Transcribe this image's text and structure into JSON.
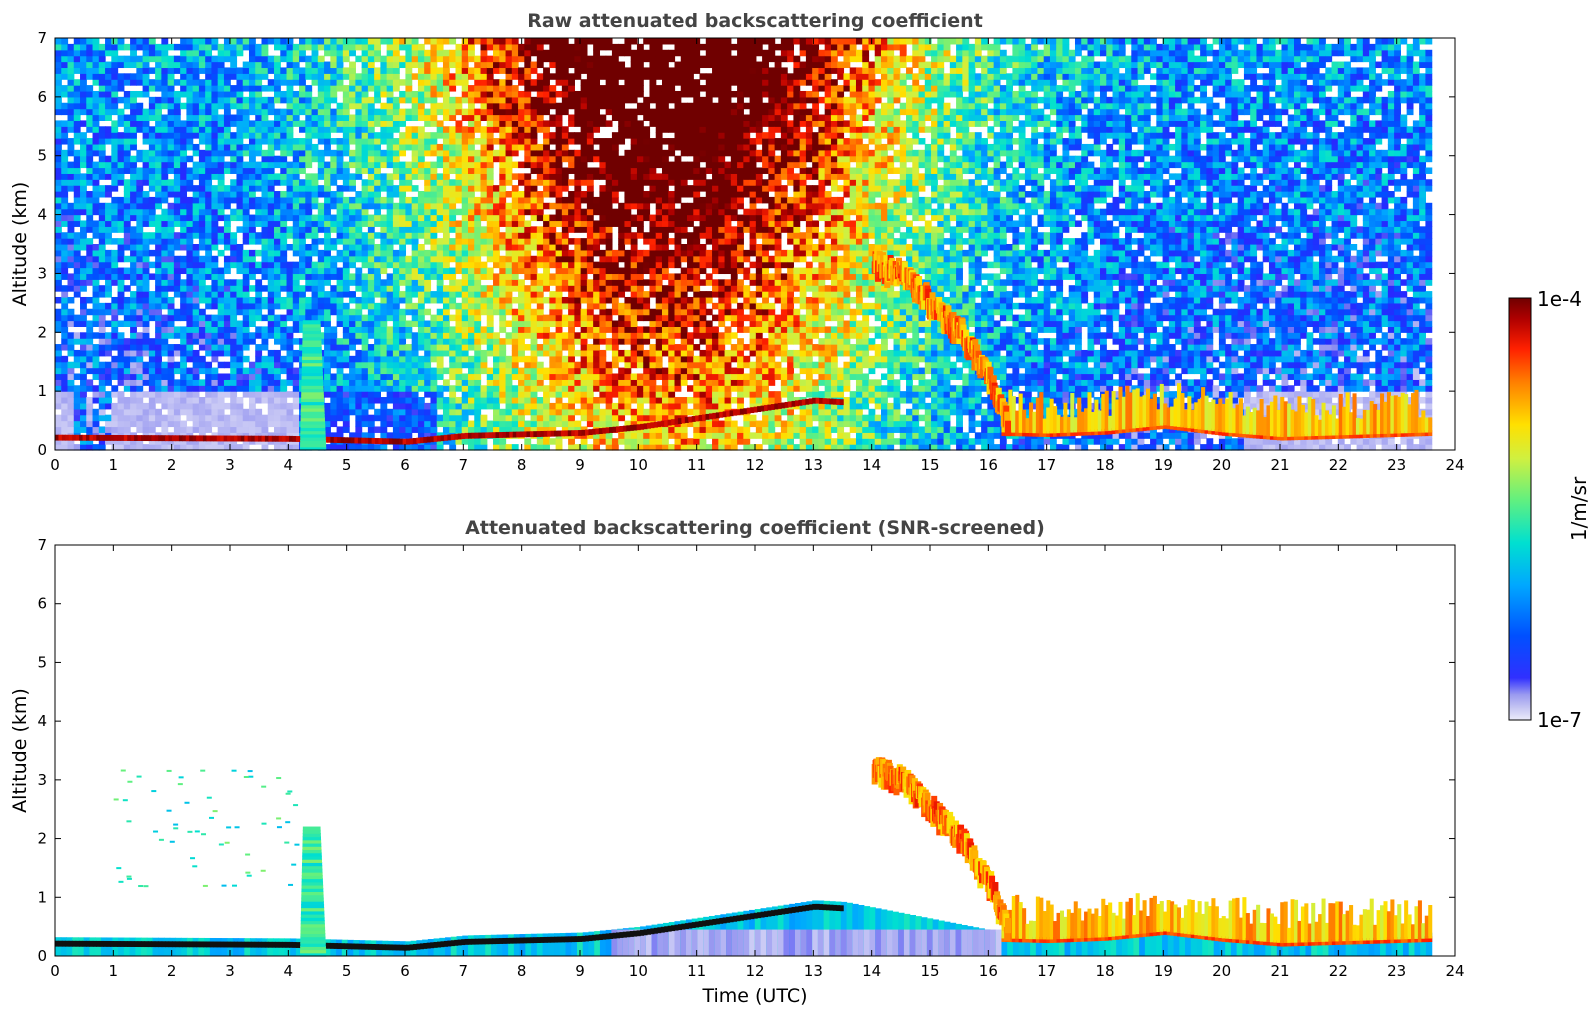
{
  "chart_data": [
    {
      "type": "heatmap",
      "title": "Raw attenuated backscattering coefficient",
      "xlabel": "",
      "ylabel": "Altitude (km)",
      "xlim": [
        0,
        24
      ],
      "ylim": [
        0,
        7
      ],
      "xticks": [
        "0",
        "1",
        "2",
        "3",
        "4",
        "5",
        "6",
        "7",
        "8",
        "9",
        "10",
        "11",
        "12",
        "13",
        "14",
        "15",
        "16",
        "17",
        "18",
        "19",
        "20",
        "21",
        "22",
        "23",
        "24"
      ],
      "yticks": [
        "0",
        "1",
        "2",
        "3",
        "4",
        "5",
        "6",
        "7"
      ],
      "data_end_x": 23.6,
      "grid": false,
      "features": {
        "boundary_layer_top_km": [
          [
            0,
            0.22
          ],
          [
            4,
            0.2
          ],
          [
            6,
            0.15
          ],
          [
            7,
            0.25
          ],
          [
            9,
            0.3
          ],
          [
            10,
            0.4
          ],
          [
            11,
            0.55
          ],
          [
            12,
            0.7
          ],
          [
            13,
            0.85
          ],
          [
            13.5,
            0.82
          ],
          [
            16.2,
            0.3
          ],
          [
            17,
            0.28
          ],
          [
            18,
            0.32
          ],
          [
            19,
            0.42
          ],
          [
            20,
            0.3
          ],
          [
            21,
            0.22
          ],
          [
            22,
            0.25
          ],
          [
            23.6,
            0.3
          ]
        ],
        "falling_layer_km": [
          [
            14,
            3.2
          ],
          [
            14.5,
            3.0
          ],
          [
            15,
            2.5
          ],
          [
            15.5,
            2.0
          ],
          [
            16,
            1.2
          ],
          [
            16.3,
            0.4
          ]
        ],
        "plume": {
          "x": 4.4,
          "top_km": 2.2
        },
        "upper_signal_peak_x_range": [
          6,
          14
        ]
      }
    },
    {
      "type": "heatmap",
      "title": "Attenuated backscattering coefficient (SNR-screened)",
      "xlabel": "Time (UTC)",
      "ylabel": "Altitude (km)",
      "xlim": [
        0,
        24
      ],
      "ylim": [
        0,
        7
      ],
      "xticks": [
        "0",
        "1",
        "2",
        "3",
        "4",
        "5",
        "6",
        "7",
        "8",
        "9",
        "10",
        "11",
        "12",
        "13",
        "14",
        "15",
        "16",
        "17",
        "18",
        "19",
        "20",
        "21",
        "22",
        "23",
        "24"
      ],
      "yticks": [
        "0",
        "1",
        "2",
        "3",
        "4",
        "5",
        "6",
        "7"
      ],
      "data_end_x": 23.6,
      "grid": false
    }
  ],
  "colorbar": {
    "label": "1/m/sr",
    "max_label": "1e-4",
    "min_label": "1e-7",
    "scale": "log",
    "range": [
      1e-07,
      0.0001
    ]
  },
  "colors": {
    "colormap": [
      "#e8e8f8",
      "#b8b8ee",
      "#0000ff",
      "#0080ff",
      "#00d0e0",
      "#40e0a0",
      "#c0f050",
      "#ffe000",
      "#ff8000",
      "#ff2000",
      "#a00000",
      "#700000"
    ]
  }
}
